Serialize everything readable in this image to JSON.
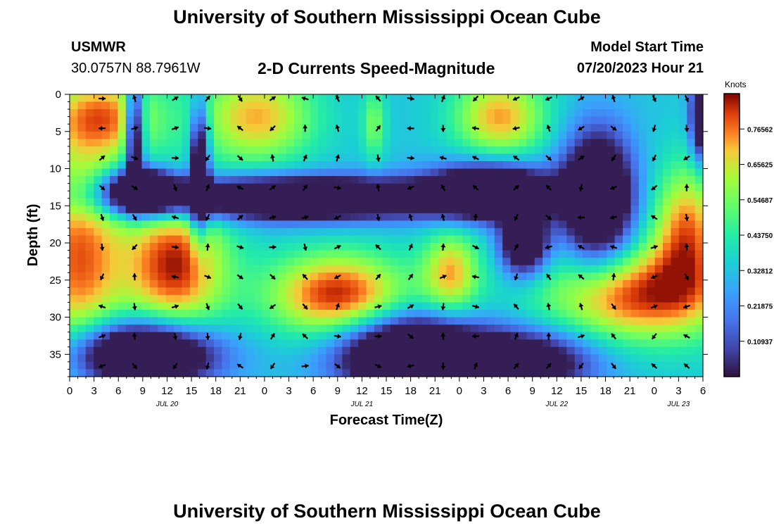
{
  "header": {
    "title": "University of Southern Mississippi Ocean Cube",
    "station": "USMWR",
    "coords": "30.0757N  88.7961W",
    "subtitle": "2-D Currents Speed-Magnitude",
    "model_start_label": "Model Start Time",
    "model_start_value": "07/20/2023 Hour 21",
    "footer_title": "University of Southern Mississippi Ocean Cube"
  },
  "chart_data": {
    "type": "heatmap",
    "title": "2-D Currents Speed-Magnitude",
    "xlabel": "Forecast Time(Z)",
    "ylabel": "Depth (ft)",
    "x_tick_labels": [
      "0",
      "3",
      "6",
      "9",
      "12",
      "15",
      "18",
      "21",
      "0",
      "3",
      "6",
      "9",
      "12",
      "15",
      "18",
      "21",
      "0",
      "3",
      "6",
      "9",
      "12",
      "15",
      "18",
      "21",
      "0",
      "3",
      "6"
    ],
    "date_labels": [
      {
        "label": "JUL 20",
        "tick_index": 4
      },
      {
        "label": "JUL 21",
        "tick_index": 12
      },
      {
        "label": "JUL 22",
        "tick_index": 20
      },
      {
        "label": "JUL 23",
        "tick_index": 25
      }
    ],
    "xlim_hours": [
      0,
      78
    ],
    "y_ticks": [
      0,
      5,
      10,
      15,
      20,
      25,
      30,
      35
    ],
    "ylim_ft": [
      0,
      38
    ],
    "colorbar": {
      "unit_label": "Knots",
      "ticks": [
        "0.10937",
        "0.21875",
        "0.32812",
        "0.43750",
        "0.54687",
        "0.65625",
        "0.76562"
      ],
      "tick_values": [
        0.10937,
        0.21875,
        0.32812,
        0.4375,
        0.54687,
        0.65625,
        0.76562
      ],
      "range": [
        0,
        0.875
      ]
    },
    "arrow_hours": [
      4,
      8,
      13,
      17,
      21,
      25,
      29,
      33,
      38,
      42,
      46,
      50,
      55,
      59,
      63,
      67,
      72,
      76
    ],
    "arrow_depths_ft": [
      0,
      4,
      8,
      12,
      16,
      20,
      24,
      28,
      32,
      36
    ],
    "speed_blobs": [
      {
        "hour": 1,
        "depth": 22,
        "sx": 4,
        "sy": 10,
        "value": 0.78
      },
      {
        "hour": 4,
        "depth": 3,
        "sx": 5,
        "sy": 4,
        "value": 0.75
      },
      {
        "hour": 13,
        "depth": 23,
        "sx": 4.5,
        "sy": 6.5,
        "value": 0.85
      },
      {
        "hour": 23,
        "depth": 3,
        "sx": 5,
        "sy": 4.5,
        "value": 0.72
      },
      {
        "hour": 33,
        "depth": 27,
        "sx": 6,
        "sy": 4,
        "value": 0.85
      },
      {
        "hour": 47,
        "depth": 24,
        "sx": 2.5,
        "sy": 4,
        "value": 0.7
      },
      {
        "hour": 53,
        "depth": 3,
        "sx": 4,
        "sy": 4,
        "value": 0.73
      },
      {
        "hour": 70,
        "depth": 27,
        "sx": 8,
        "sy": 4.5,
        "value": 0.83
      },
      {
        "hour": 76,
        "depth": 18,
        "sx": 3,
        "sy": 6,
        "value": 0.75
      },
      {
        "hour": 37.5,
        "depth": 4,
        "sx": 1,
        "sy": 3.5,
        "value": 0.55
      },
      {
        "hour": 16,
        "depth": 10,
        "sx": 0.8,
        "sy": 6,
        "value": -0.3
      },
      {
        "hour": 8,
        "depth": 5,
        "sx": 0.8,
        "sy": 5,
        "value": -0.3
      },
      {
        "hour": 9,
        "depth": 13,
        "sx": 3,
        "sy": 2,
        "value": -0.5
      },
      {
        "hour": 28,
        "depth": 14,
        "sx": 14,
        "sy": 2,
        "value": -0.4
      },
      {
        "hour": 52,
        "depth": 13,
        "sx": 5,
        "sy": 2.5,
        "value": -0.4
      },
      {
        "hour": 9,
        "depth": 35,
        "sx": 6,
        "sy": 3,
        "value": -0.5
      },
      {
        "hour": 42,
        "depth": 35,
        "sx": 6,
        "sy": 3.5,
        "value": -0.5
      },
      {
        "hour": 65,
        "depth": 14,
        "sx": 3,
        "sy": 6,
        "value": -0.4
      },
      {
        "hour": 78,
        "depth": 3,
        "sx": 1,
        "sy": 4,
        "value": -0.3
      },
      {
        "hour": 56,
        "depth": 20,
        "sx": 2,
        "sy": 3,
        "value": -0.3
      },
      {
        "hour": 56,
        "depth": 36,
        "sx": 6,
        "sy": 3,
        "value": -0.2
      }
    ],
    "speed_baseline": 0.33
  }
}
